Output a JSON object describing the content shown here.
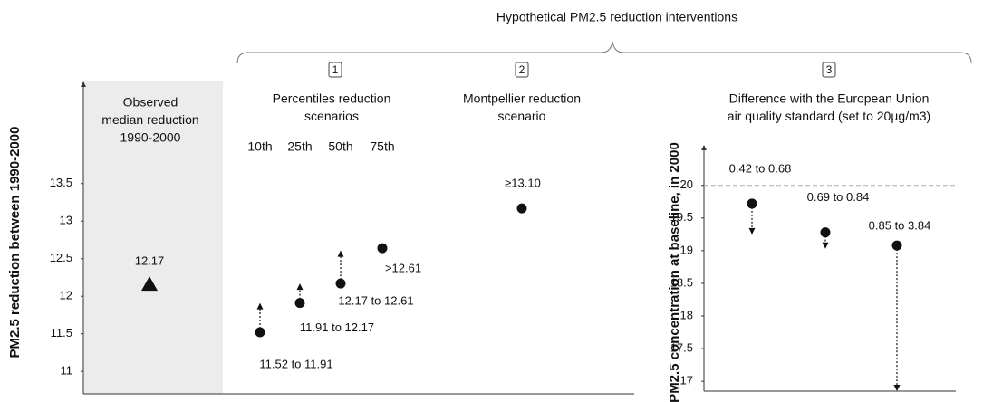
{
  "title": "Hypothetical PM2.5 reduction interventions",
  "chart_data": [
    {
      "type": "intervals",
      "ylabel": "PM2.5 reduction between 1990-2000",
      "ylim": [
        10.7,
        14.86
      ],
      "yticks": [
        11,
        11.5,
        12,
        12.5,
        13,
        13.5
      ],
      "groups": [
        {
          "heading": [
            "Observed",
            "median reduction",
            "1990-2000"
          ],
          "shaded": true,
          "marker": "triangle",
          "categories": [
            null
          ],
          "values": [
            12.17
          ],
          "value_labels": [
            "12.17"
          ]
        },
        {
          "number": "1",
          "heading": [
            "Percentiles reduction",
            "scenarios"
          ],
          "marker": "circle",
          "categories": [
            "10th",
            "25th",
            "50th",
            "75th"
          ],
          "values": [
            11.52,
            11.91,
            12.17,
            12.64
          ],
          "arrow_to": [
            11.91,
            12.17,
            12.61,
            null
          ],
          "value_labels": [
            "11.52 to 11.91",
            "11.91 to 12.17",
            "12.17 to 12.61",
            ">12.61"
          ]
        },
        {
          "number": "2",
          "heading": [
            "Montpellier reduction",
            "scenario"
          ],
          "marker": "circle",
          "categories": [
            null
          ],
          "values": [
            13.17
          ],
          "value_labels": [
            "≥13.10"
          ]
        }
      ]
    },
    {
      "type": "intervals",
      "ylabel": "PM2.5 concentration at baseline, in 2000",
      "ylim": [
        16.85,
        20.62
      ],
      "yticks": [
        17,
        17.5,
        18,
        18.5,
        19,
        19.5,
        20
      ],
      "reference_line": 20,
      "groups": [
        {
          "number": "3",
          "heading": [
            "Difference with the European Union",
            "air quality standard (set to 20µg/m3)"
          ],
          "marker": "circle",
          "categories": [
            null,
            null,
            null
          ],
          "values": [
            19.72,
            19.28,
            19.08
          ],
          "arrow_to": [
            19.25,
            19.03,
            16.85
          ],
          "value_labels": [
            "0.42 to 0.68",
            "0.69 to 0.84",
            "0.85 to 3.84"
          ]
        }
      ]
    }
  ]
}
